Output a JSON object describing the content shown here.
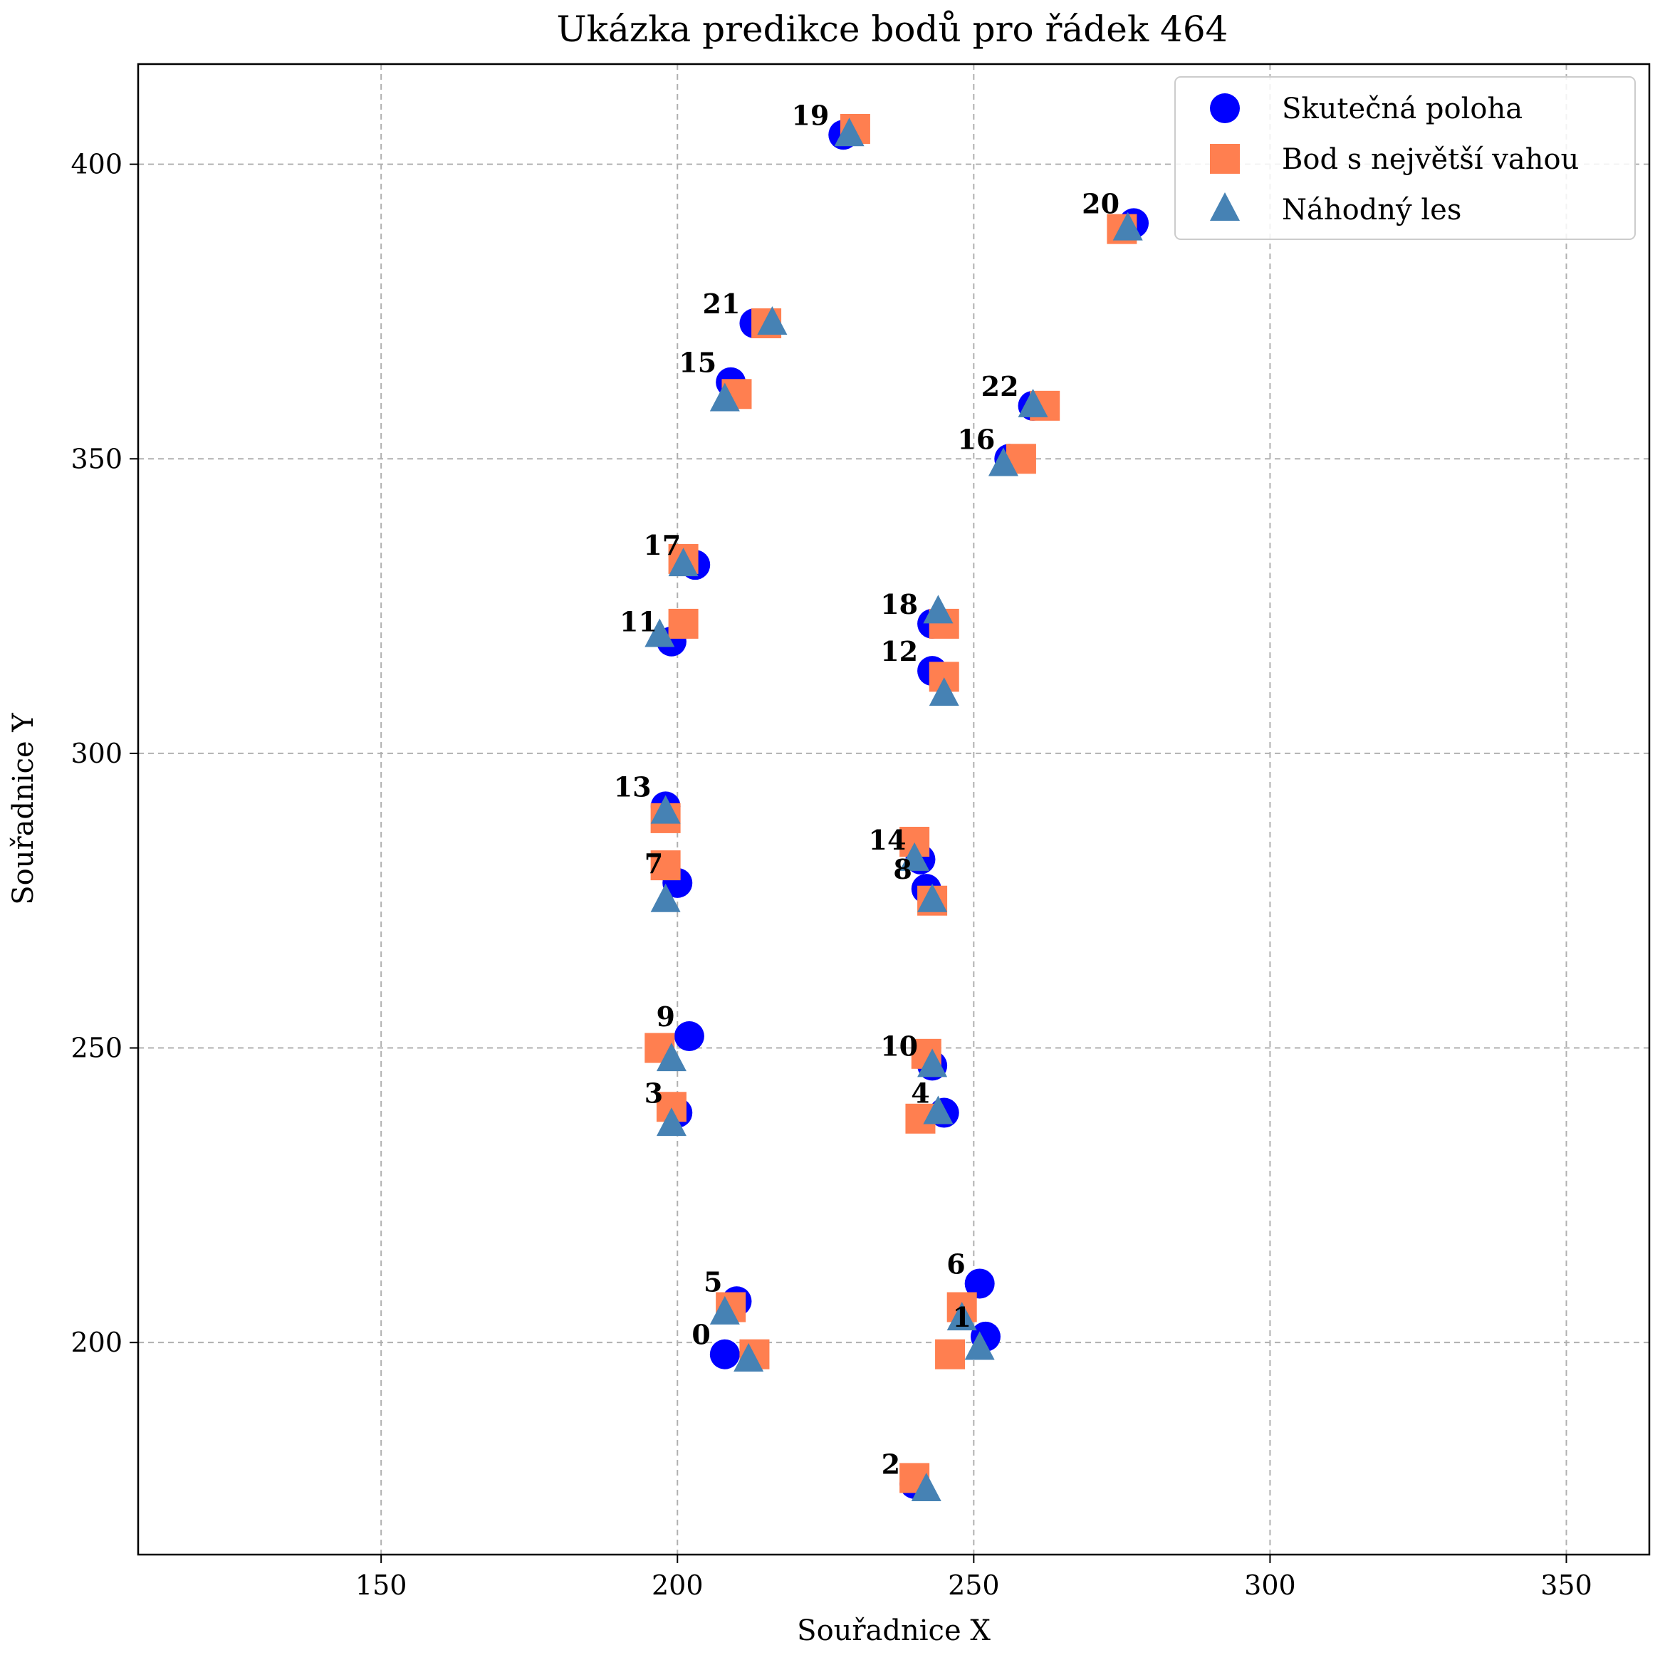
{
  "chart_data": {
    "type": "scatter",
    "title": "Ukázka predikce bodů pro řádek 464",
    "xlabel": "Souřadnice X",
    "ylabel": "Souřadnice Y",
    "xlim": [
      109,
      364
    ],
    "ylim": [
      164,
      417
    ],
    "xticks": [
      150,
      200,
      250,
      300,
      350
    ],
    "yticks": [
      200,
      250,
      300,
      350,
      400
    ],
    "grid": true,
    "legend_position": "top-right",
    "colors": {
      "actual": "#0000ff",
      "max_weight": "#ff7f50",
      "random_forest": "#4682b4"
    },
    "series": [
      {
        "name": "Skutečná poloha",
        "marker": "circle",
        "color": "#0000ff",
        "points": [
          {
            "label": "0",
            "x": 208,
            "y": 198
          },
          {
            "label": "1",
            "x": 252,
            "y": 201
          },
          {
            "label": "2",
            "x": 240,
            "y": 176
          },
          {
            "label": "3",
            "x": 200,
            "y": 239
          },
          {
            "label": "4",
            "x": 245,
            "y": 239
          },
          {
            "label": "5",
            "x": 210,
            "y": 207
          },
          {
            "label": "6",
            "x": 251,
            "y": 210
          },
          {
            "label": "7",
            "x": 200,
            "y": 278
          },
          {
            "label": "8",
            "x": 242,
            "y": 277
          },
          {
            "label": "9",
            "x": 202,
            "y": 252
          },
          {
            "label": "10",
            "x": 243,
            "y": 247
          },
          {
            "label": "11",
            "x": 199,
            "y": 319
          },
          {
            "label": "12",
            "x": 243,
            "y": 314
          },
          {
            "label": "13",
            "x": 198,
            "y": 291
          },
          {
            "label": "14",
            "x": 241,
            "y": 282
          },
          {
            "label": "15",
            "x": 209,
            "y": 363
          },
          {
            "label": "16",
            "x": 256,
            "y": 350
          },
          {
            "label": "17",
            "x": 203,
            "y": 332
          },
          {
            "label": "18",
            "x": 243,
            "y": 322
          },
          {
            "label": "19",
            "x": 228,
            "y": 405
          },
          {
            "label": "20",
            "x": 277,
            "y": 390
          },
          {
            "label": "21",
            "x": 213,
            "y": 373
          },
          {
            "label": "22",
            "x": 260,
            "y": 359
          }
        ]
      },
      {
        "name": "Bod s největší vahou",
        "marker": "square",
        "color": "#ff7f50",
        "points": [
          {
            "x": 213,
            "y": 198
          },
          {
            "x": 246,
            "y": 198
          },
          {
            "x": 240,
            "y": 177
          },
          {
            "x": 199,
            "y": 240
          },
          {
            "x": 241,
            "y": 238
          },
          {
            "x": 209,
            "y": 206
          },
          {
            "x": 248,
            "y": 206
          },
          {
            "x": 198,
            "y": 281
          },
          {
            "x": 243,
            "y": 275
          },
          {
            "x": 197,
            "y": 250
          },
          {
            "x": 242,
            "y": 249
          },
          {
            "x": 201,
            "y": 322
          },
          {
            "x": 245,
            "y": 313
          },
          {
            "x": 198,
            "y": 289
          },
          {
            "x": 240,
            "y": 285
          },
          {
            "x": 210,
            "y": 361
          },
          {
            "x": 258,
            "y": 350
          },
          {
            "x": 201,
            "y": 333
          },
          {
            "x": 245,
            "y": 322
          },
          {
            "x": 230,
            "y": 406
          },
          {
            "x": 275,
            "y": 389
          },
          {
            "x": 215,
            "y": 373
          },
          {
            "x": 262,
            "y": 359
          }
        ]
      },
      {
        "name": "Náhodný les",
        "marker": "triangle",
        "color": "#4682b4",
        "points": [
          {
            "x": 212,
            "y": 197
          },
          {
            "x": 251,
            "y": 199
          },
          {
            "x": 242,
            "y": 175
          },
          {
            "x": 199,
            "y": 237
          },
          {
            "x": 244,
            "y": 239
          },
          {
            "x": 208,
            "y": 205
          },
          {
            "x": 248,
            "y": 204
          },
          {
            "x": 198,
            "y": 275
          },
          {
            "x": 243,
            "y": 275
          },
          {
            "x": 199,
            "y": 248
          },
          {
            "x": 243,
            "y": 247
          },
          {
            "x": 197,
            "y": 320
          },
          {
            "x": 245,
            "y": 310
          },
          {
            "x": 198,
            "y": 290
          },
          {
            "x": 240,
            "y": 282
          },
          {
            "x": 208,
            "y": 360
          },
          {
            "x": 255,
            "y": 349
          },
          {
            "x": 201,
            "y": 332
          },
          {
            "x": 244,
            "y": 324
          },
          {
            "x": 229,
            "y": 405
          },
          {
            "x": 276,
            "y": 389
          },
          {
            "x": 216,
            "y": 373
          },
          {
            "x": 260,
            "y": 359
          }
        ]
      }
    ]
  }
}
